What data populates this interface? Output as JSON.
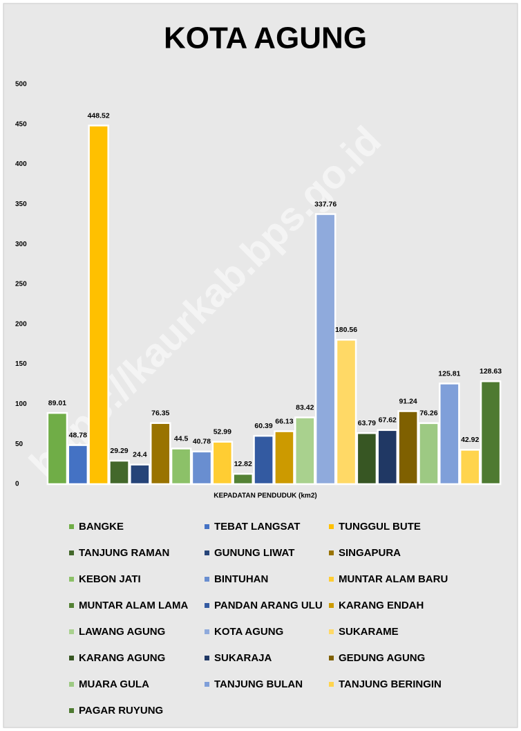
{
  "chart_data": {
    "type": "bar",
    "title": "KOTA AGUNG",
    "x_label": "KEPADATAN PENDUDUK (km2)",
    "categories": [
      "KEPADATAN PENDUDUK (km2)"
    ],
    "ylim": [
      0,
      500
    ],
    "yticks": [
      0,
      50,
      100,
      150,
      200,
      250,
      300,
      350,
      400,
      450,
      500
    ],
    "grid": false,
    "legend": "bottom",
    "series": [
      {
        "name": "BANGKE",
        "color": "#70ad47",
        "values": [
          89.01
        ]
      },
      {
        "name": "TEBAT LANGSAT",
        "color": "#4472c4",
        "values": [
          48.78
        ]
      },
      {
        "name": "TUNGGUL BUTE",
        "color": "#ffc000",
        "values": [
          448.52
        ]
      },
      {
        "name": "TANJUNG RAMAN",
        "color": "#43682b",
        "values": [
          29.29
        ]
      },
      {
        "name": "GUNUNG LIWAT",
        "color": "#264478",
        "values": [
          24.4
        ]
      },
      {
        "name": "SINGAPURA",
        "color": "#997300",
        "values": [
          76.35
        ]
      },
      {
        "name": "KEBON JATI",
        "color": "#8cc168",
        "values": [
          44.5
        ]
      },
      {
        "name": "BINTUHAN",
        "color": "#698ed0",
        "values": [
          40.78
        ]
      },
      {
        "name": "MUNTAR ALAM BARU",
        "color": "#ffcd33",
        "values": [
          52.99
        ]
      },
      {
        "name": "MUNTAR ALAM LAMA",
        "color": "#548235",
        "values": [
          12.82
        ]
      },
      {
        "name": "PANDAN ARANG ULU",
        "color": "#335aa1",
        "values": [
          60.39
        ]
      },
      {
        "name": "KARANG ENDAH",
        "color": "#cc9a00",
        "values": [
          66.13
        ]
      },
      {
        "name": "LAWANG AGUNG",
        "color": "#a9d18e",
        "values": [
          83.42
        ]
      },
      {
        "name": "KOTA AGUNG",
        "color": "#8faadc",
        "values": [
          337.76
        ]
      },
      {
        "name": "SUKARAME",
        "color": "#ffd966",
        "values": [
          180.56
        ]
      },
      {
        "name": "KARANG AGUNG",
        "color": "#375623",
        "values": [
          63.79
        ]
      },
      {
        "name": "SUKARAJA",
        "color": "#203864",
        "values": [
          67.62
        ]
      },
      {
        "name": "GEDUNG AGUNG",
        "color": "#7f6000",
        "values": [
          91.24
        ]
      },
      {
        "name": "MUARA GULA",
        "color": "#9dc983",
        "values": [
          76.26
        ]
      },
      {
        "name": "TANJUNG BULAN",
        "color": "#7f9fd9",
        "values": [
          125.81
        ]
      },
      {
        "name": "TANJUNG BERINGIN",
        "color": "#ffd44d",
        "values": [
          42.92
        ]
      },
      {
        "name": "PAGAR RUYUNG",
        "color": "#4e7a31",
        "values": [
          128.63
        ]
      }
    ]
  },
  "watermark": "https://kaurkab.bps.go.id"
}
